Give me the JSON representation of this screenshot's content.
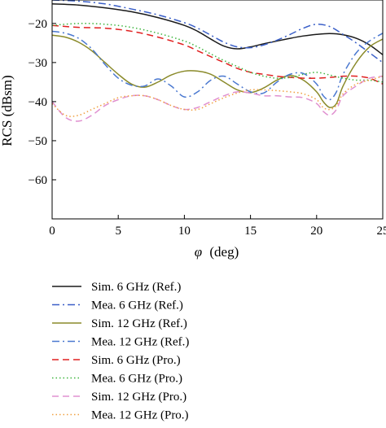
{
  "chart_data": {
    "type": "line",
    "xlabel_symbol": "φ",
    "xlabel_unit": "(deg)",
    "ylabel": "RCS (dBsm)",
    "xlim": [
      0,
      25
    ],
    "ylim": [
      -70,
      -14
    ],
    "x_ticks": [
      0,
      5,
      10,
      15,
      20,
      25
    ],
    "x_tick_labels": [
      "0",
      "5",
      "10",
      "15",
      "20",
      "25"
    ],
    "y_ticks": [
      -20,
      -30,
      -40,
      -50,
      -60
    ],
    "y_tick_labels": [
      "−20",
      "−30",
      "−40",
      "−50",
      "−60"
    ],
    "grid": false,
    "legend_position": "below",
    "series": [
      {
        "name": "Sim. 6 GHz (Ref.)",
        "color": "#1a1a1a",
        "dash": "solid",
        "x": [
          0,
          2,
          4,
          6,
          8,
          10,
          11,
          12,
          13,
          14,
          15,
          16,
          17,
          18,
          19,
          20,
          21,
          22,
          23,
          24,
          25
        ],
        "y": [
          -15.0,
          -15.3,
          -16.0,
          -17.0,
          -18.5,
          -20.5,
          -22.0,
          -24.0,
          -25.8,
          -26.5,
          -26.0,
          -25.2,
          -24.5,
          -23.8,
          -23.2,
          -22.8,
          -22.6,
          -22.9,
          -23.8,
          -25.5,
          -28.0
        ]
      },
      {
        "name": "Mea. 6 GHz (Ref.)",
        "color": "#3a5fc8",
        "dash": "dashdot",
        "x": [
          0,
          2,
          4,
          6,
          8,
          10,
          11,
          12,
          13,
          14,
          15,
          16,
          17,
          18,
          19,
          20,
          21,
          22,
          23,
          24,
          25
        ],
        "y": [
          -14.0,
          -14.3,
          -15.0,
          -16.3,
          -17.8,
          -19.8,
          -21.2,
          -23.0,
          -24.8,
          -26.0,
          -26.2,
          -25.5,
          -24.3,
          -22.8,
          -21.2,
          -20.2,
          -20.8,
          -22.8,
          -25.0,
          -27.5,
          -30.0
        ]
      },
      {
        "name": "Sim. 12 GHz (Ref.)",
        "color": "#8a8a2a",
        "dash": "solid",
        "x": [
          0,
          1,
          2,
          3,
          4,
          5,
          6,
          7,
          8,
          9,
          10,
          11,
          12,
          13,
          14,
          15,
          16,
          17,
          18,
          19,
          20,
          20.5,
          21,
          21.5,
          22,
          23,
          24,
          25
        ],
        "y": [
          -23.0,
          -23.5,
          -24.8,
          -27.0,
          -30.0,
          -33.0,
          -35.5,
          -36.3,
          -35.0,
          -33.2,
          -32.2,
          -32.2,
          -33.0,
          -35.0,
          -37.0,
          -37.7,
          -36.5,
          -34.5,
          -33.3,
          -34.5,
          -37.5,
          -40.0,
          -41.5,
          -40.5,
          -36.0,
          -30.0,
          -26.0,
          -24.0
        ]
      },
      {
        "name": "Mea. 12 GHz (Ref.)",
        "color": "#4a78d0",
        "dash": "dashdot",
        "x": [
          0,
          1,
          2,
          3,
          4,
          5,
          6,
          7,
          8,
          9,
          10,
          11,
          12,
          13,
          14,
          15,
          16,
          17,
          18,
          19,
          20,
          20.5,
          21,
          21.5,
          22,
          23,
          24,
          25
        ],
        "y": [
          -22.0,
          -22.5,
          -23.8,
          -26.5,
          -30.5,
          -34.0,
          -35.8,
          -36.0,
          -34.2,
          -36.0,
          -38.8,
          -37.5,
          -34.5,
          -33.5,
          -35.5,
          -37.5,
          -37.8,
          -35.0,
          -33.0,
          -32.8,
          -35.5,
          -38.5,
          -39.5,
          -37.5,
          -33.0,
          -27.5,
          -24.5,
          -22.5
        ]
      },
      {
        "name": "Sim. 6 GHz (Pro.)",
        "color": "#e02020",
        "dash": "dashed",
        "x": [
          0,
          2,
          4,
          6,
          8,
          10,
          11,
          12,
          13,
          14,
          15,
          16,
          17,
          18,
          19,
          20,
          21,
          22,
          23,
          24,
          25
        ],
        "y": [
          -20.5,
          -21.0,
          -21.2,
          -22.0,
          -23.5,
          -25.5,
          -27.0,
          -28.5,
          -30.0,
          -31.5,
          -32.5,
          -33.0,
          -33.5,
          -33.8,
          -34.0,
          -34.0,
          -33.8,
          -33.5,
          -33.5,
          -34.0,
          -35.5
        ]
      },
      {
        "name": "Mea. 6 GHz (Pro.)",
        "color": "#3cb43c",
        "dash": "dotted",
        "x": [
          0,
          2,
          4,
          6,
          8,
          10,
          11,
          12,
          13,
          14,
          15,
          16,
          17,
          18,
          19,
          20,
          21,
          22,
          23,
          24,
          25
        ],
        "y": [
          -20.5,
          -20.0,
          -20.2,
          -21.0,
          -22.5,
          -24.5,
          -26.0,
          -27.8,
          -29.5,
          -31.0,
          -32.5,
          -33.5,
          -34.0,
          -33.8,
          -33.0,
          -32.5,
          -33.2,
          -34.0,
          -34.5,
          -34.5,
          -35.0
        ]
      },
      {
        "name": "Sim. 12 GHz (Pro.)",
        "color": "#e090d0",
        "dash": "dashed",
        "x": [
          0,
          1,
          2,
          3,
          4,
          5,
          6,
          7,
          8,
          9,
          10,
          11,
          12,
          13,
          14,
          15,
          16,
          17,
          18,
          19,
          20,
          20.5,
          21,
          21.5,
          22,
          23,
          24,
          25
        ],
        "y": [
          -40.0,
          -44.0,
          -45.0,
          -43.5,
          -41.0,
          -39.5,
          -38.5,
          -38.5,
          -39.5,
          -41.0,
          -42.0,
          -41.5,
          -40.0,
          -38.5,
          -37.5,
          -37.8,
          -38.5,
          -38.5,
          -38.8,
          -39.0,
          -40.5,
          -42.5,
          -43.5,
          -42.0,
          -38.5,
          -36.0,
          -34.0,
          -33.5
        ]
      },
      {
        "name": "Mea. 12 GHz (Pro.)",
        "color": "#f0a040",
        "dash": "dotted",
        "x": [
          0,
          1,
          2,
          3,
          4,
          5,
          6,
          7,
          8,
          9,
          10,
          11,
          12,
          13,
          14,
          15,
          16,
          17,
          18,
          19,
          20,
          20.5,
          21,
          21.5,
          22,
          23,
          24,
          25
        ],
        "y": [
          -40.5,
          -43.5,
          -43.5,
          -42.0,
          -40.5,
          -39.0,
          -38.5,
          -38.5,
          -39.5,
          -41.0,
          -42.0,
          -42.0,
          -40.5,
          -39.0,
          -37.8,
          -37.0,
          -37.0,
          -37.2,
          -37.5,
          -38.0,
          -39.5,
          -41.5,
          -42.0,
          -41.0,
          -38.0,
          -35.5,
          -34.5,
          -33.5
        ]
      }
    ]
  }
}
